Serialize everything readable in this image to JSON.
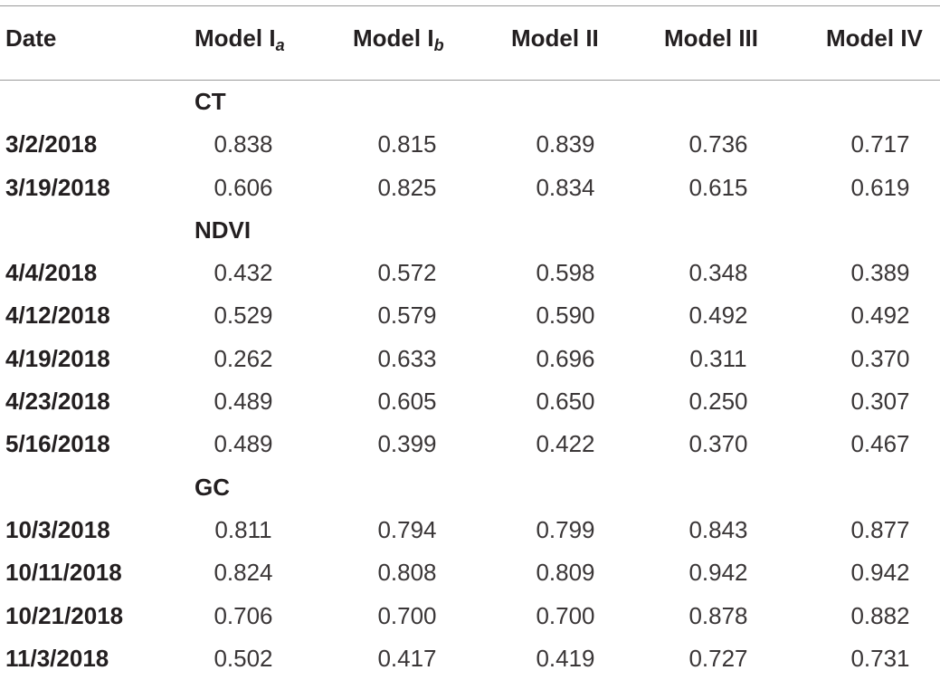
{
  "header": {
    "date": "Date",
    "model_ia": "Model I",
    "model_ia_sub": "a",
    "model_ib": "Model I",
    "model_ib_sub": "b",
    "model_ii": "Model II",
    "model_iii": "Model III",
    "model_iv": "Model IV"
  },
  "rows": [
    {
      "type": "section",
      "label": "CT"
    },
    {
      "type": "data",
      "date": "3/2/2018",
      "v": [
        "0.838",
        "0.815",
        "0.839",
        "0.736",
        "0.717"
      ]
    },
    {
      "type": "data",
      "date": "3/19/2018",
      "v": [
        "0.606",
        "0.825",
        "0.834",
        "0.615",
        "0.619"
      ]
    },
    {
      "type": "section",
      "label": "NDVI"
    },
    {
      "type": "data",
      "date": "4/4/2018",
      "v": [
        "0.432",
        "0.572",
        "0.598",
        "0.348",
        "0.389"
      ]
    },
    {
      "type": "data",
      "date": "4/12/2018",
      "v": [
        "0.529",
        "0.579",
        "0.590",
        "0.492",
        "0.492"
      ]
    },
    {
      "type": "data",
      "date": "4/19/2018",
      "v": [
        "0.262",
        "0.633",
        "0.696",
        "0.311",
        "0.370"
      ]
    },
    {
      "type": "data",
      "date": "4/23/2018",
      "v": [
        "0.489",
        "0.605",
        "0.650",
        "0.250",
        "0.307"
      ]
    },
    {
      "type": "data",
      "date": "5/16/2018",
      "v": [
        "0.489",
        "0.399",
        "0.422",
        "0.370",
        "0.467"
      ]
    },
    {
      "type": "section",
      "label": "GC"
    },
    {
      "type": "data",
      "date": "10/3/2018",
      "v": [
        "0.811",
        "0.794",
        "0.799",
        "0.843",
        "0.877"
      ]
    },
    {
      "type": "data",
      "date": "10/11/2018",
      "v": [
        "0.824",
        "0.808",
        "0.809",
        "0.942",
        "0.942"
      ]
    },
    {
      "type": "data",
      "date": "10/21/2018",
      "v": [
        "0.706",
        "0.700",
        "0.700",
        "0.878",
        "0.882"
      ]
    },
    {
      "type": "data",
      "date": "11/3/2018",
      "v": [
        "0.502",
        "0.417",
        "0.419",
        "0.727",
        "0.731"
      ]
    }
  ]
}
